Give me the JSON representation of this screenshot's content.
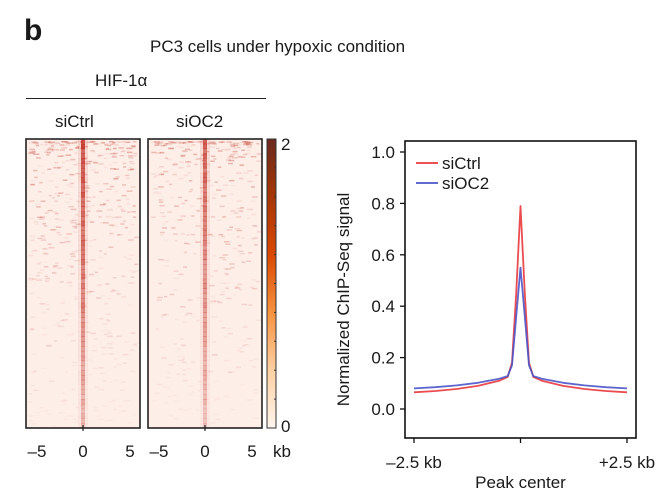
{
  "panel_letter": "b",
  "figure_title": "PC3 cells under hypoxic condition",
  "heatmap": {
    "protein_label": "HIF-1α",
    "panels": [
      {
        "label": "siCtrl"
      },
      {
        "label": "siOC2"
      }
    ],
    "x_ticks": [
      "–5",
      "0",
      "5"
    ],
    "x_unit": "kb",
    "colorbar": {
      "min_label": "0",
      "max_label": "2",
      "min": 0,
      "max": 2,
      "colors": [
        "#fff5ee",
        "#fdd0a2",
        "#f7923f",
        "#d94801",
        "#a63603",
        "#6b2a1f"
      ]
    },
    "colors": {
      "background": "#fdeee8",
      "peak": "#c0281d"
    }
  },
  "chart_data": {
    "type": "line",
    "title": "",
    "xlabel": "Peak center",
    "ylabel": "Normalized ChIP-Seq signal",
    "x_range_kb": [
      -2.5,
      2.5
    ],
    "x_tick_labels": [
      "–2.5 kb",
      "",
      "+2.5 kb"
    ],
    "x_ticks_kb": [
      -2.5,
      0,
      2.5
    ],
    "ylim": [
      0.0,
      1.0
    ],
    "y_ticks": [
      0.0,
      0.2,
      0.4,
      0.6,
      0.8,
      1.0
    ],
    "y_tick_labels": [
      "0.0",
      "0.2",
      "0.4",
      "0.6",
      "0.8",
      "1.0"
    ],
    "grid": false,
    "legend_position": "top-left",
    "x": [
      -2.5,
      -2.0,
      -1.5,
      -1.0,
      -0.5,
      -0.3,
      -0.2,
      -0.1,
      0.0,
      0.1,
      0.2,
      0.3,
      0.5,
      1.0,
      1.5,
      2.0,
      2.5
    ],
    "series": [
      {
        "name": "siCtrl",
        "color": "#e8383d",
        "values": [
          0.065,
          0.07,
          0.078,
          0.09,
          0.11,
          0.125,
          0.18,
          0.45,
          0.79,
          0.45,
          0.18,
          0.125,
          0.11,
          0.09,
          0.078,
          0.07,
          0.065
        ]
      },
      {
        "name": "siOC2",
        "color": "#4a55c8",
        "values": [
          0.08,
          0.085,
          0.092,
          0.102,
          0.118,
          0.128,
          0.17,
          0.36,
          0.55,
          0.36,
          0.17,
          0.128,
          0.118,
          0.102,
          0.092,
          0.085,
          0.08
        ]
      }
    ]
  }
}
